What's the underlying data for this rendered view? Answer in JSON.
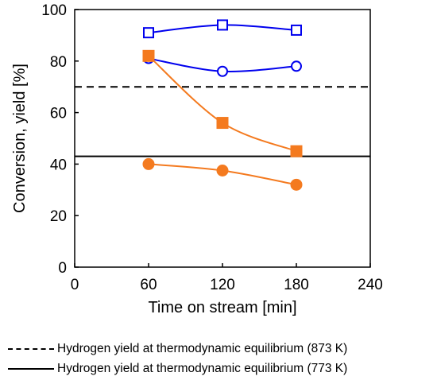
{
  "chart_data": {
    "type": "line",
    "xlabel": "Time on stream [min]",
    "ylabel": "Conversion, yield [%]",
    "xlim": [
      0,
      240
    ],
    "ylim": [
      0,
      100
    ],
    "x_ticks": [
      0,
      60,
      120,
      180,
      240
    ],
    "y_ticks": [
      0,
      20,
      40,
      60,
      80,
      100
    ],
    "grid": false,
    "series": [
      {
        "x": [
          60,
          120,
          180
        ],
        "values": [
          91,
          94,
          92
        ],
        "color": "#0000ee",
        "marker": "open-square"
      },
      {
        "x": [
          60,
          120,
          180
        ],
        "values": [
          81,
          76,
          78
        ],
        "color": "#0000ee",
        "marker": "open-circle"
      },
      {
        "x": [
          60,
          120,
          180
        ],
        "values": [
          82,
          56,
          45
        ],
        "color": "#f47a1f",
        "marker": "filled-square"
      },
      {
        "x": [
          60,
          120,
          180
        ],
        "values": [
          40,
          37.5,
          32
        ],
        "color": "#f47a1f",
        "marker": "filled-circle"
      }
    ],
    "reference_lines": [
      {
        "y": 70,
        "style": "dashed",
        "color": "#000000",
        "label": "Hydrogen yield at thermodynamic equilibrium (873 K)"
      },
      {
        "y": 43,
        "style": "solid",
        "color": "#000000",
        "label": "Hydrogen yield at thermodynamic equilibrium (773 K)"
      }
    ]
  }
}
